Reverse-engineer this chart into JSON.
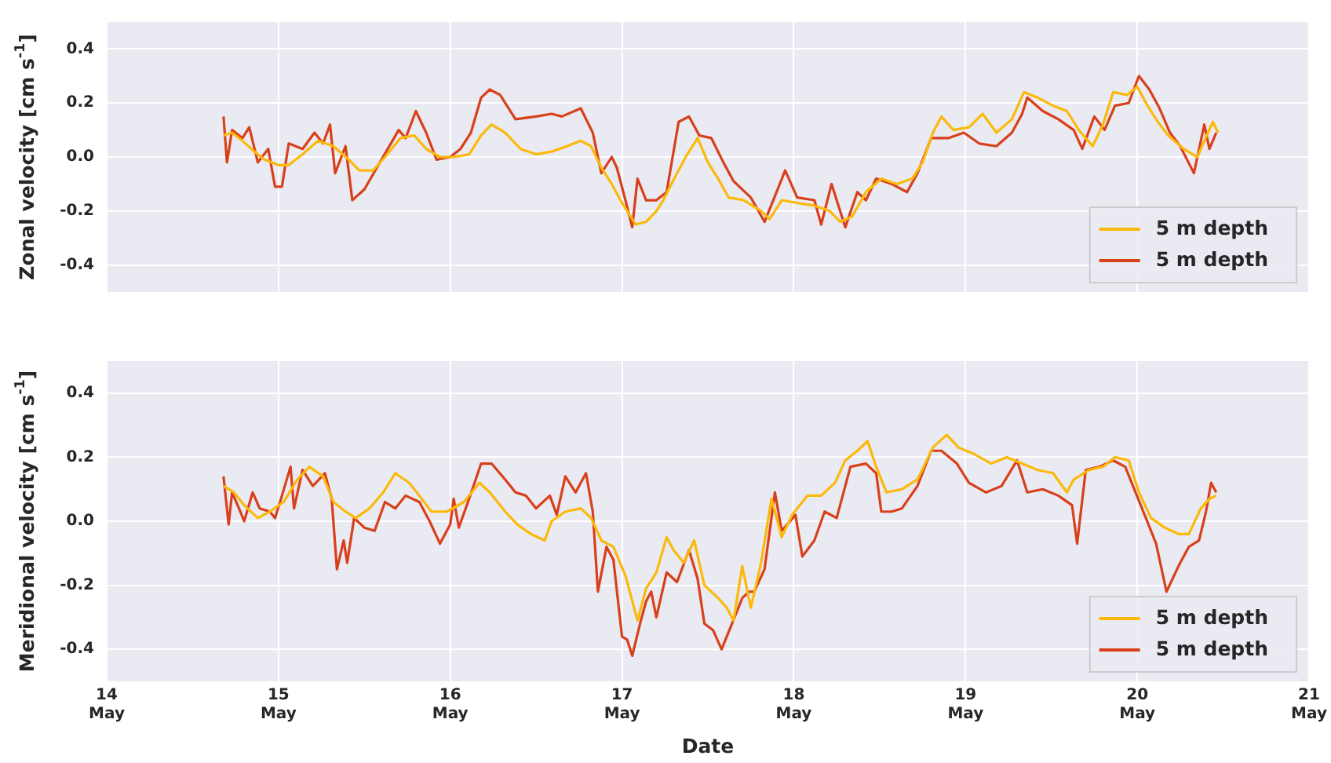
{
  "chart_data": [
    {
      "type": "line",
      "ylabel": "Zonal velocity [cm s$^{-1}$]",
      "xlim": [
        "--05-14",
        "--05-21"
      ],
      "ylim": [
        -0.5,
        0.5
      ],
      "yticks": [
        -0.4,
        -0.2,
        {
          "value": 0,
          "label": "0.0"
        },
        0.2,
        0.4
      ],
      "xticks": [
        {
          "value": "--05-14",
          "label": null
        },
        {
          "value": "--05-15",
          "label": null
        },
        {
          "value": "--05-16",
          "label": null
        },
        {
          "value": "--05-17",
          "label": null
        },
        {
          "value": "--05-18",
          "label": null
        },
        {
          "value": "--05-19",
          "label": null
        },
        {
          "value": "--05-20",
          "label": null
        },
        {
          "value": "--05-21",
          "label": null
        }
      ],
      "tick_labels": "y",
      "grid": true,
      "legend": "bottom right",
      "marker": "none",
      "line_style": "solid",
      "series": [
        {
          "name": "5 m depth",
          "color": "#fbb90a",
          "x": [
            "--05-14T16:19",
            "--05-14T17:31",
            "--05-14T18:58",
            "--05-14T20:38",
            "--05-14T22:05",
            "--05-15T00:00",
            "--05-15T01:26",
            "--05-15T03:22",
            "--05-15T05:31",
            "--05-15T07:41",
            "--05-15T09:50",
            "--05-15T11:17",
            "--05-15T13:12",
            "--05-15T14:53",
            "--05-15T17:02",
            "--05-15T18:58",
            "--05-15T20:38",
            "--05-15T22:34",
            "--05-16T00:29",
            "--05-16T02:38",
            "--05-16T04:19",
            "--05-16T05:46",
            "--05-16T07:41",
            "--05-16T09:50",
            "--05-16T12:00",
            "--05-16T14:10",
            "--05-16T16:19",
            "--05-16T18:14",
            "--05-16T19:41",
            "--05-16T21:07",
            "--05-16T22:34",
            "--05-17T00:00",
            "--05-17T01:55",
            "--05-17T03:22",
            "--05-17T04:48",
            "--05-17T05:46",
            "--05-17T07:41",
            "--05-17T09:07",
            "--05-17T10:34",
            "--05-17T12:00",
            "--05-17T13:26",
            "--05-17T14:53",
            "--05-17T17:02",
            "--05-17T19:26",
            "--05-17T20:38",
            "--05-17T22:19",
            "--05-18T00:29",
            "--05-18T02:53",
            "--05-18T05:02",
            "--05-18T06:29",
            "--05-18T08:10",
            "--05-18T10:05",
            "--05-18T12:14",
            "--05-18T14:24",
            "--05-18T16:34",
            "--05-18T18:00",
            "--05-18T19:26",
            "--05-18T20:38",
            "--05-18T22:19",
            "--05-19T00:29",
            "--05-19T02:24",
            "--05-19T04:19",
            "--05-19T06:29",
            "--05-19T08:10",
            "--05-19T10:05",
            "--05-19T12:14",
            "--05-19T14:10",
            "--05-19T15:50",
            "--05-19T17:46",
            "--05-19T19:12",
            "--05-19T20:38",
            "--05-19T22:34",
            "--05-20T00:00",
            "--05-20T01:26",
            "--05-20T02:53",
            "--05-20T04:19",
            "--05-20T06:29",
            "--05-20T08:24",
            "--05-20T09:22",
            "--05-20T10:34",
            "--05-20T11:17"
          ],
          "values": [
            0.08,
            0.09,
            0.06,
            0.02,
            -0.01,
            -0.03,
            -0.03,
            0.01,
            0.06,
            0.04,
            -0.01,
            -0.05,
            -0.05,
            0.0,
            0.07,
            0.08,
            0.03,
            0.0,
            0.0,
            0.01,
            0.08,
            0.12,
            0.09,
            0.03,
            0.01,
            0.02,
            0.04,
            0.06,
            0.04,
            -0.04,
            -0.1,
            -0.17,
            -0.25,
            -0.24,
            -0.2,
            -0.16,
            -0.06,
            0.01,
            0.07,
            -0.02,
            -0.08,
            -0.15,
            -0.16,
            -0.2,
            -0.23,
            -0.16,
            -0.17,
            -0.18,
            -0.2,
            -0.24,
            -0.22,
            -0.13,
            -0.08,
            -0.1,
            -0.08,
            -0.02,
            0.09,
            0.15,
            0.1,
            0.11,
            0.16,
            0.09,
            0.14,
            0.24,
            0.22,
            0.19,
            0.17,
            0.1,
            0.04,
            0.12,
            0.24,
            0.23,
            0.26,
            0.19,
            0.13,
            0.08,
            0.03,
            0.0,
            0.06,
            0.13,
            0.09
          ]
        },
        {
          "name": "5 m depth",
          "color": "#d8401b",
          "x": [
            "--05-14T16:19",
            "--05-14T16:48",
            "--05-14T17:31",
            "--05-14T18:58",
            "--05-14T19:55",
            "--05-14T21:07",
            "--05-14T22:34",
            "--05-14T23:31",
            "--05-15T00:29",
            "--05-15T01:26",
            "--05-15T03:22",
            "--05-15T05:02",
            "--05-15T06:14",
            "--05-15T07:12",
            "--05-15T07:55",
            "--05-15T09:22",
            "--05-15T10:19",
            "--05-15T12:00",
            "--05-15T14:10",
            "--05-15T16:48",
            "--05-15T17:46",
            "--05-15T19:12",
            "--05-15T20:38",
            "--05-15T22:05",
            "--05-16T00:00",
            "--05-16T01:26",
            "--05-16T02:53",
            "--05-16T04:19",
            "--05-16T05:31",
            "--05-16T06:58",
            "--05-16T09:07",
            "--05-16T12:00",
            "--05-16T14:10",
            "--05-16T15:36",
            "--05-16T18:14",
            "--05-16T19:55",
            "--05-16T21:07",
            "--05-16T22:34",
            "--05-16T23:17",
            "--05-17T00:29",
            "--05-17T01:26",
            "--05-17T02:10",
            "--05-17T03:22",
            "--05-17T04:48",
            "--05-17T06:14",
            "--05-17T07:55",
            "--05-17T09:22",
            "--05-17T10:48",
            "--05-17T12:29",
            "--05-17T14:10",
            "--05-17T15:36",
            "--05-17T18:00",
            "--05-17T19:55",
            "--05-17T21:36",
            "--05-17T22:48",
            "--05-18T00:29",
            "--05-18T02:53",
            "--05-18T03:50",
            "--05-18T05:17",
            "--05-18T07:12",
            "--05-18T08:53",
            "--05-18T10:05",
            "--05-18T11:31",
            "--05-18T13:41",
            "--05-18T15:50",
            "--05-18T17:17",
            "--05-18T19:12",
            "--05-18T21:36",
            "--05-18T23:46",
            "--05-19T01:55",
            "--05-19T04:19",
            "--05-19T06:29",
            "--05-19T07:55",
            "--05-19T08:38",
            "--05-19T10:48",
            "--05-19T12:58",
            "--05-19T15:07",
            "--05-19T16:19",
            "--05-19T18:00",
            "--05-19T19:26",
            "--05-19T20:53",
            "--05-19T22:48",
            "--05-20T00:14",
            "--05-20T01:41",
            "--05-20T03:07",
            "--05-20T04:34",
            "--05-20T06:00",
            "--05-20T07:55",
            "--05-20T09:22",
            "--05-20T10:05",
            "--05-20T11:02"
          ],
          "values": [
            0.15,
            -0.02,
            0.1,
            0.07,
            0.11,
            -0.02,
            0.03,
            -0.11,
            -0.11,
            0.05,
            0.03,
            0.09,
            0.05,
            0.12,
            -0.06,
            0.04,
            -0.16,
            -0.12,
            -0.02,
            0.1,
            0.07,
            0.17,
            0.09,
            -0.01,
            0.0,
            0.03,
            0.09,
            0.22,
            0.25,
            0.23,
            0.14,
            0.15,
            0.16,
            0.15,
            0.18,
            0.09,
            -0.06,
            0.0,
            -0.04,
            -0.16,
            -0.26,
            -0.08,
            -0.16,
            -0.16,
            -0.13,
            0.13,
            0.15,
            0.08,
            0.07,
            -0.02,
            -0.09,
            -0.15,
            -0.24,
            -0.13,
            -0.05,
            -0.15,
            -0.16,
            -0.25,
            -0.1,
            -0.26,
            -0.13,
            -0.16,
            -0.08,
            -0.1,
            -0.13,
            -0.06,
            0.07,
            0.07,
            0.09,
            0.05,
            0.04,
            0.09,
            0.16,
            0.22,
            0.17,
            0.14,
            0.1,
            0.03,
            0.15,
            0.1,
            0.19,
            0.2,
            0.3,
            0.25,
            0.18,
            0.09,
            0.04,
            -0.06,
            0.12,
            0.03,
            0.09
          ]
        }
      ]
    },
    {
      "type": "line",
      "ylabel": "Meridional velocity [cm s$^{-1}$]",
      "xlabel": "Date",
      "xlim": [
        "--05-14",
        "--05-21"
      ],
      "ylim": [
        -0.5,
        0.5
      ],
      "yticks": [
        -0.4,
        -0.2,
        {
          "value": 0,
          "label": "0.0"
        },
        0.2,
        0.4
      ],
      "xticks": [
        {
          "value": "--05-14",
          "label": "14 May"
        },
        {
          "value": "--05-15",
          "label": "15 May"
        },
        {
          "value": "--05-16",
          "label": "16 May"
        },
        {
          "value": "--05-17",
          "label": "17 May"
        },
        {
          "value": "--05-18",
          "label": "18 May"
        },
        {
          "value": "--05-19",
          "label": "19 May"
        },
        {
          "value": "--05-20",
          "label": "20 May"
        },
        {
          "value": "--05-21",
          "label": "21 May"
        }
      ],
      "grid": true,
      "legend": "bottom right",
      "marker": "none",
      "line_style": "solid",
      "series": [
        {
          "name": "5 m depth",
          "color": "#fbb90a",
          "x": [
            "--05-14T16:19",
            "--05-14T17:46",
            "--05-14T19:12",
            "--05-14T21:07",
            "--05-14T22:48",
            "--05-15T00:43",
            "--05-15T02:38",
            "--05-15T04:19",
            "--05-15T06:14",
            "--05-15T07:41",
            "--05-15T09:22",
            "--05-15T10:48",
            "--05-15T12:43",
            "--05-15T14:38",
            "--05-15T16:19",
            "--05-15T18:14",
            "--05-15T19:41",
            "--05-15T21:22",
            "--05-15T23:31",
            "--05-16T01:55",
            "--05-16T04:05",
            "--05-16T05:31",
            "--05-16T07:41",
            "--05-16T09:22",
            "--05-16T11:17",
            "--05-16T13:12",
            "--05-16T14:10",
            "--05-16T16:05",
            "--05-16T18:14",
            "--05-16T19:41",
            "--05-16T21:07",
            "--05-16T22:48",
            "--05-17T00:29",
            "--05-17T02:10",
            "--05-17T03:22",
            "--05-17T04:48",
            "--05-17T06:14",
            "--05-17T07:12",
            "--05-17T08:38",
            "--05-17T10:05",
            "--05-17T11:31",
            "--05-17T13:26",
            "--05-17T14:38",
            "--05-17T15:36",
            "--05-17T16:48",
            "--05-17T18:00",
            "--05-17T19:26",
            "--05-17T20:53",
            "--05-17T22:19",
            "--05-17T23:46",
            "--05-18T01:55",
            "--05-18T03:50",
            "--05-18T05:46",
            "--05-18T07:12",
            "--05-18T08:53",
            "--05-18T10:19",
            "--05-18T11:31",
            "--05-18T12:58",
            "--05-18T15:07",
            "--05-18T17:17",
            "--05-18T19:26",
            "--05-18T21:22",
            "--05-18T23:02",
            "--05-19T01:12",
            "--05-19T03:36",
            "--05-19T05:46",
            "--05-19T07:55",
            "--05-19T10:05",
            "--05-19T12:14",
            "--05-19T14:10",
            "--05-19T15:07",
            "--05-19T17:17",
            "--05-19T19:12",
            "--05-19T20:53",
            "--05-19T22:48",
            "--05-20T00:14",
            "--05-20T01:55",
            "--05-20T03:50",
            "--05-20T05:46",
            "--05-20T07:12",
            "--05-20T08:53",
            "--05-20T10:05",
            "--05-20T11:02"
          ],
          "values": [
            0.11,
            0.09,
            0.05,
            0.01,
            0.03,
            0.06,
            0.13,
            0.17,
            0.14,
            0.06,
            0.03,
            0.01,
            0.04,
            0.09,
            0.15,
            0.12,
            0.08,
            0.03,
            0.03,
            0.06,
            0.12,
            0.09,
            0.03,
            -0.01,
            -0.04,
            -0.06,
            0.0,
            0.03,
            0.04,
            0.01,
            -0.06,
            -0.08,
            -0.17,
            -0.31,
            -0.21,
            -0.16,
            -0.05,
            -0.09,
            -0.13,
            -0.06,
            -0.2,
            -0.24,
            -0.27,
            -0.31,
            -0.14,
            -0.27,
            -0.13,
            0.07,
            -0.05,
            0.02,
            0.08,
            0.08,
            0.12,
            0.19,
            0.22,
            0.25,
            0.17,
            0.09,
            0.1,
            0.13,
            0.23,
            0.27,
            0.23,
            0.21,
            0.18,
            0.2,
            0.18,
            0.16,
            0.15,
            0.09,
            0.13,
            0.16,
            0.17,
            0.2,
            0.19,
            0.09,
            0.01,
            -0.02,
            -0.04,
            -0.04,
            0.04,
            0.07,
            0.08
          ]
        },
        {
          "name": "5 m depth",
          "color": "#d8401b",
          "x": [
            "--05-14T16:19",
            "--05-14T17:02",
            "--05-14T17:31",
            "--05-14T18:29",
            "--05-14T19:12",
            "--05-14T20:24",
            "--05-14T21:22",
            "--05-14T22:48",
            "--05-14T23:31",
            "--05-15T00:29",
            "--05-15T01:41",
            "--05-15T02:10",
            "--05-15T03:22",
            "--05-15T04:48",
            "--05-15T06:29",
            "--05-15T07:26",
            "--05-15T08:10",
            "--05-15T09:07",
            "--05-15T09:36",
            "--05-15T10:34",
            "--05-15T12:00",
            "--05-15T13:26",
            "--05-15T14:53",
            "--05-15T16:19",
            "--05-15T17:46",
            "--05-15T19:41",
            "--05-15T21:07",
            "--05-15T22:34",
            "--05-16T00:00",
            "--05-16T00:29",
            "--05-16T01:12",
            "--05-16T02:38",
            "--05-16T04:19",
            "--05-16T05:46",
            "--05-16T07:41",
            "--05-16T09:07",
            "--05-16T10:34",
            "--05-16T12:00",
            "--05-16T13:55",
            "--05-16T14:53",
            "--05-16T16:05",
            "--05-16T17:31",
            "--05-16T18:58",
            "--05-16T19:55",
            "--05-16T20:38",
            "--05-16T21:50",
            "--05-16T22:48",
            "--05-17T00:00",
            "--05-17T00:43",
            "--05-17T01:26",
            "--05-17T02:38",
            "--05-17T03:22",
            "--05-17T04:05",
            "--05-17T04:48",
            "--05-17T06:14",
            "--05-17T07:41",
            "--05-17T09:22",
            "--05-17T10:34",
            "--05-17T11:31",
            "--05-17T12:43",
            "--05-17T13:55",
            "--05-17T15:22",
            "--05-17T16:48",
            "--05-17T17:46",
            "--05-17T18:29",
            "--05-17T19:55",
            "--05-17T21:22",
            "--05-17T22:19",
            "--05-18T00:14",
            "--05-18T01:12",
            "--05-18T02:53",
            "--05-18T04:19",
            "--05-18T06:00",
            "--05-18T07:55",
            "--05-18T10:05",
            "--05-18T11:31",
            "--05-18T12:14",
            "--05-18T13:41",
            "--05-18T15:07",
            "--05-18T17:17",
            "--05-18T19:12",
            "--05-18T20:38",
            "--05-18T22:48",
            "--05-19T00:29",
            "--05-19T02:53",
            "--05-19T05:02",
            "--05-19T07:12",
            "--05-19T08:38",
            "--05-19T10:48",
            "--05-19T12:58",
            "--05-19T14:53",
            "--05-19T15:36",
            "--05-19T16:48",
            "--05-19T18:43",
            "--05-19T20:38",
            "--05-19T22:19",
            "--05-19T23:46",
            "--05-20T01:12",
            "--05-20T02:38",
            "--05-20T04:05",
            "--05-20T05:46",
            "--05-20T07:12",
            "--05-20T08:38",
            "--05-20T09:36",
            "--05-20T10:19",
            "--05-20T11:02"
          ],
          "values": [
            0.14,
            -0.01,
            0.09,
            0.04,
            0.0,
            0.09,
            0.04,
            0.03,
            0.01,
            0.08,
            0.17,
            0.04,
            0.16,
            0.11,
            0.15,
            0.07,
            -0.15,
            -0.06,
            -0.13,
            0.01,
            -0.02,
            -0.03,
            0.06,
            0.04,
            0.08,
            0.06,
            0.0,
            -0.07,
            -0.01,
            0.07,
            -0.02,
            0.07,
            0.18,
            0.18,
            0.13,
            0.09,
            0.08,
            0.04,
            0.08,
            0.02,
            0.14,
            0.09,
            0.15,
            0.03,
            -0.22,
            -0.08,
            -0.12,
            -0.36,
            -0.37,
            -0.42,
            -0.31,
            -0.25,
            -0.22,
            -0.3,
            -0.16,
            -0.19,
            -0.09,
            -0.18,
            -0.32,
            -0.34,
            -0.4,
            -0.32,
            -0.24,
            -0.22,
            -0.22,
            -0.15,
            0.09,
            -0.03,
            0.02,
            -0.11,
            -0.06,
            0.03,
            0.01,
            0.17,
            0.18,
            0.15,
            0.03,
            0.03,
            0.04,
            0.11,
            0.22,
            0.22,
            0.18,
            0.12,
            0.09,
            0.11,
            0.19,
            0.09,
            0.1,
            0.08,
            0.05,
            -0.07,
            0.16,
            0.17,
            0.19,
            0.17,
            0.09,
            0.01,
            -0.07,
            -0.22,
            -0.14,
            -0.08,
            -0.06,
            0.03,
            0.12,
            0.09
          ]
        }
      ]
    }
  ]
}
